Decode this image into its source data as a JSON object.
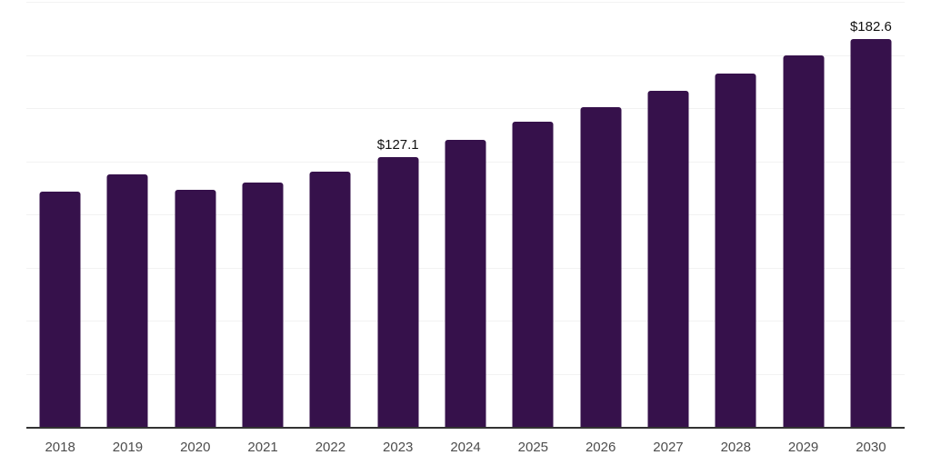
{
  "chart_data": {
    "type": "bar",
    "categories": [
      "2018",
      "2019",
      "2020",
      "2021",
      "2022",
      "2023",
      "2024",
      "2025",
      "2026",
      "2027",
      "2028",
      "2029",
      "2030"
    ],
    "values": [
      110.8,
      119.0,
      111.5,
      114.9,
      120.2,
      127.1,
      135.2,
      143.4,
      150.5,
      158.2,
      166.2,
      175.0,
      182.6
    ],
    "data_labels": [
      "",
      "",
      "",
      "",
      "",
      "$127.1",
      "",
      "",
      "",
      "",
      "",
      "",
      "$182.6"
    ],
    "title": "",
    "xlabel": "",
    "ylabel": "",
    "ylim": [
      0,
      200
    ],
    "gridline_step": 25,
    "grid": true,
    "legend_position": "none",
    "y_tick_labels_shown": false,
    "colors": {
      "bar": "#36114B",
      "gridline": "#f2f2f2",
      "axis_line": "#333333",
      "x_tick_label": "#4d4d4d",
      "data_label": "#111111",
      "background": "#ffffff"
    }
  }
}
